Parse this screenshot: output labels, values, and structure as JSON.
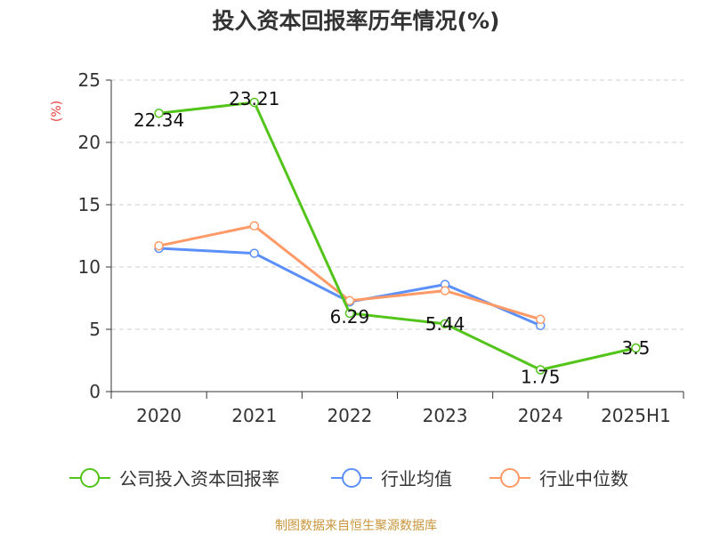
{
  "chart_data": {
    "type": "line",
    "title": "投入资本回报率历年情况(%)",
    "ylabel": "(%)",
    "categories": [
      "2020",
      "2021",
      "2022",
      "2023",
      "2024",
      "2025H1"
    ],
    "ylim": [
      0,
      25
    ],
    "yticks": [
      0,
      5,
      10,
      15,
      20,
      25
    ],
    "grid": true,
    "legend_position": "bottom",
    "series": [
      {
        "name": "公司投入资本回报率",
        "color": "#52c41a",
        "values": [
          22.34,
          23.21,
          6.29,
          5.44,
          1.75,
          3.5
        ],
        "labels": [
          "22.34",
          "23.21",
          "6.29",
          "5.44",
          "1.75",
          "3.5"
        ]
      },
      {
        "name": "行业均值",
        "color": "#5b8ff9",
        "values": [
          11.5,
          11.1,
          7.2,
          8.6,
          5.3,
          null
        ]
      },
      {
        "name": "行业中位数",
        "color": "#ff9966",
        "values": [
          11.7,
          13.3,
          7.3,
          8.1,
          5.8,
          null
        ]
      }
    ]
  },
  "footer": {
    "source": "制图数据来自恒生聚源数据库"
  }
}
